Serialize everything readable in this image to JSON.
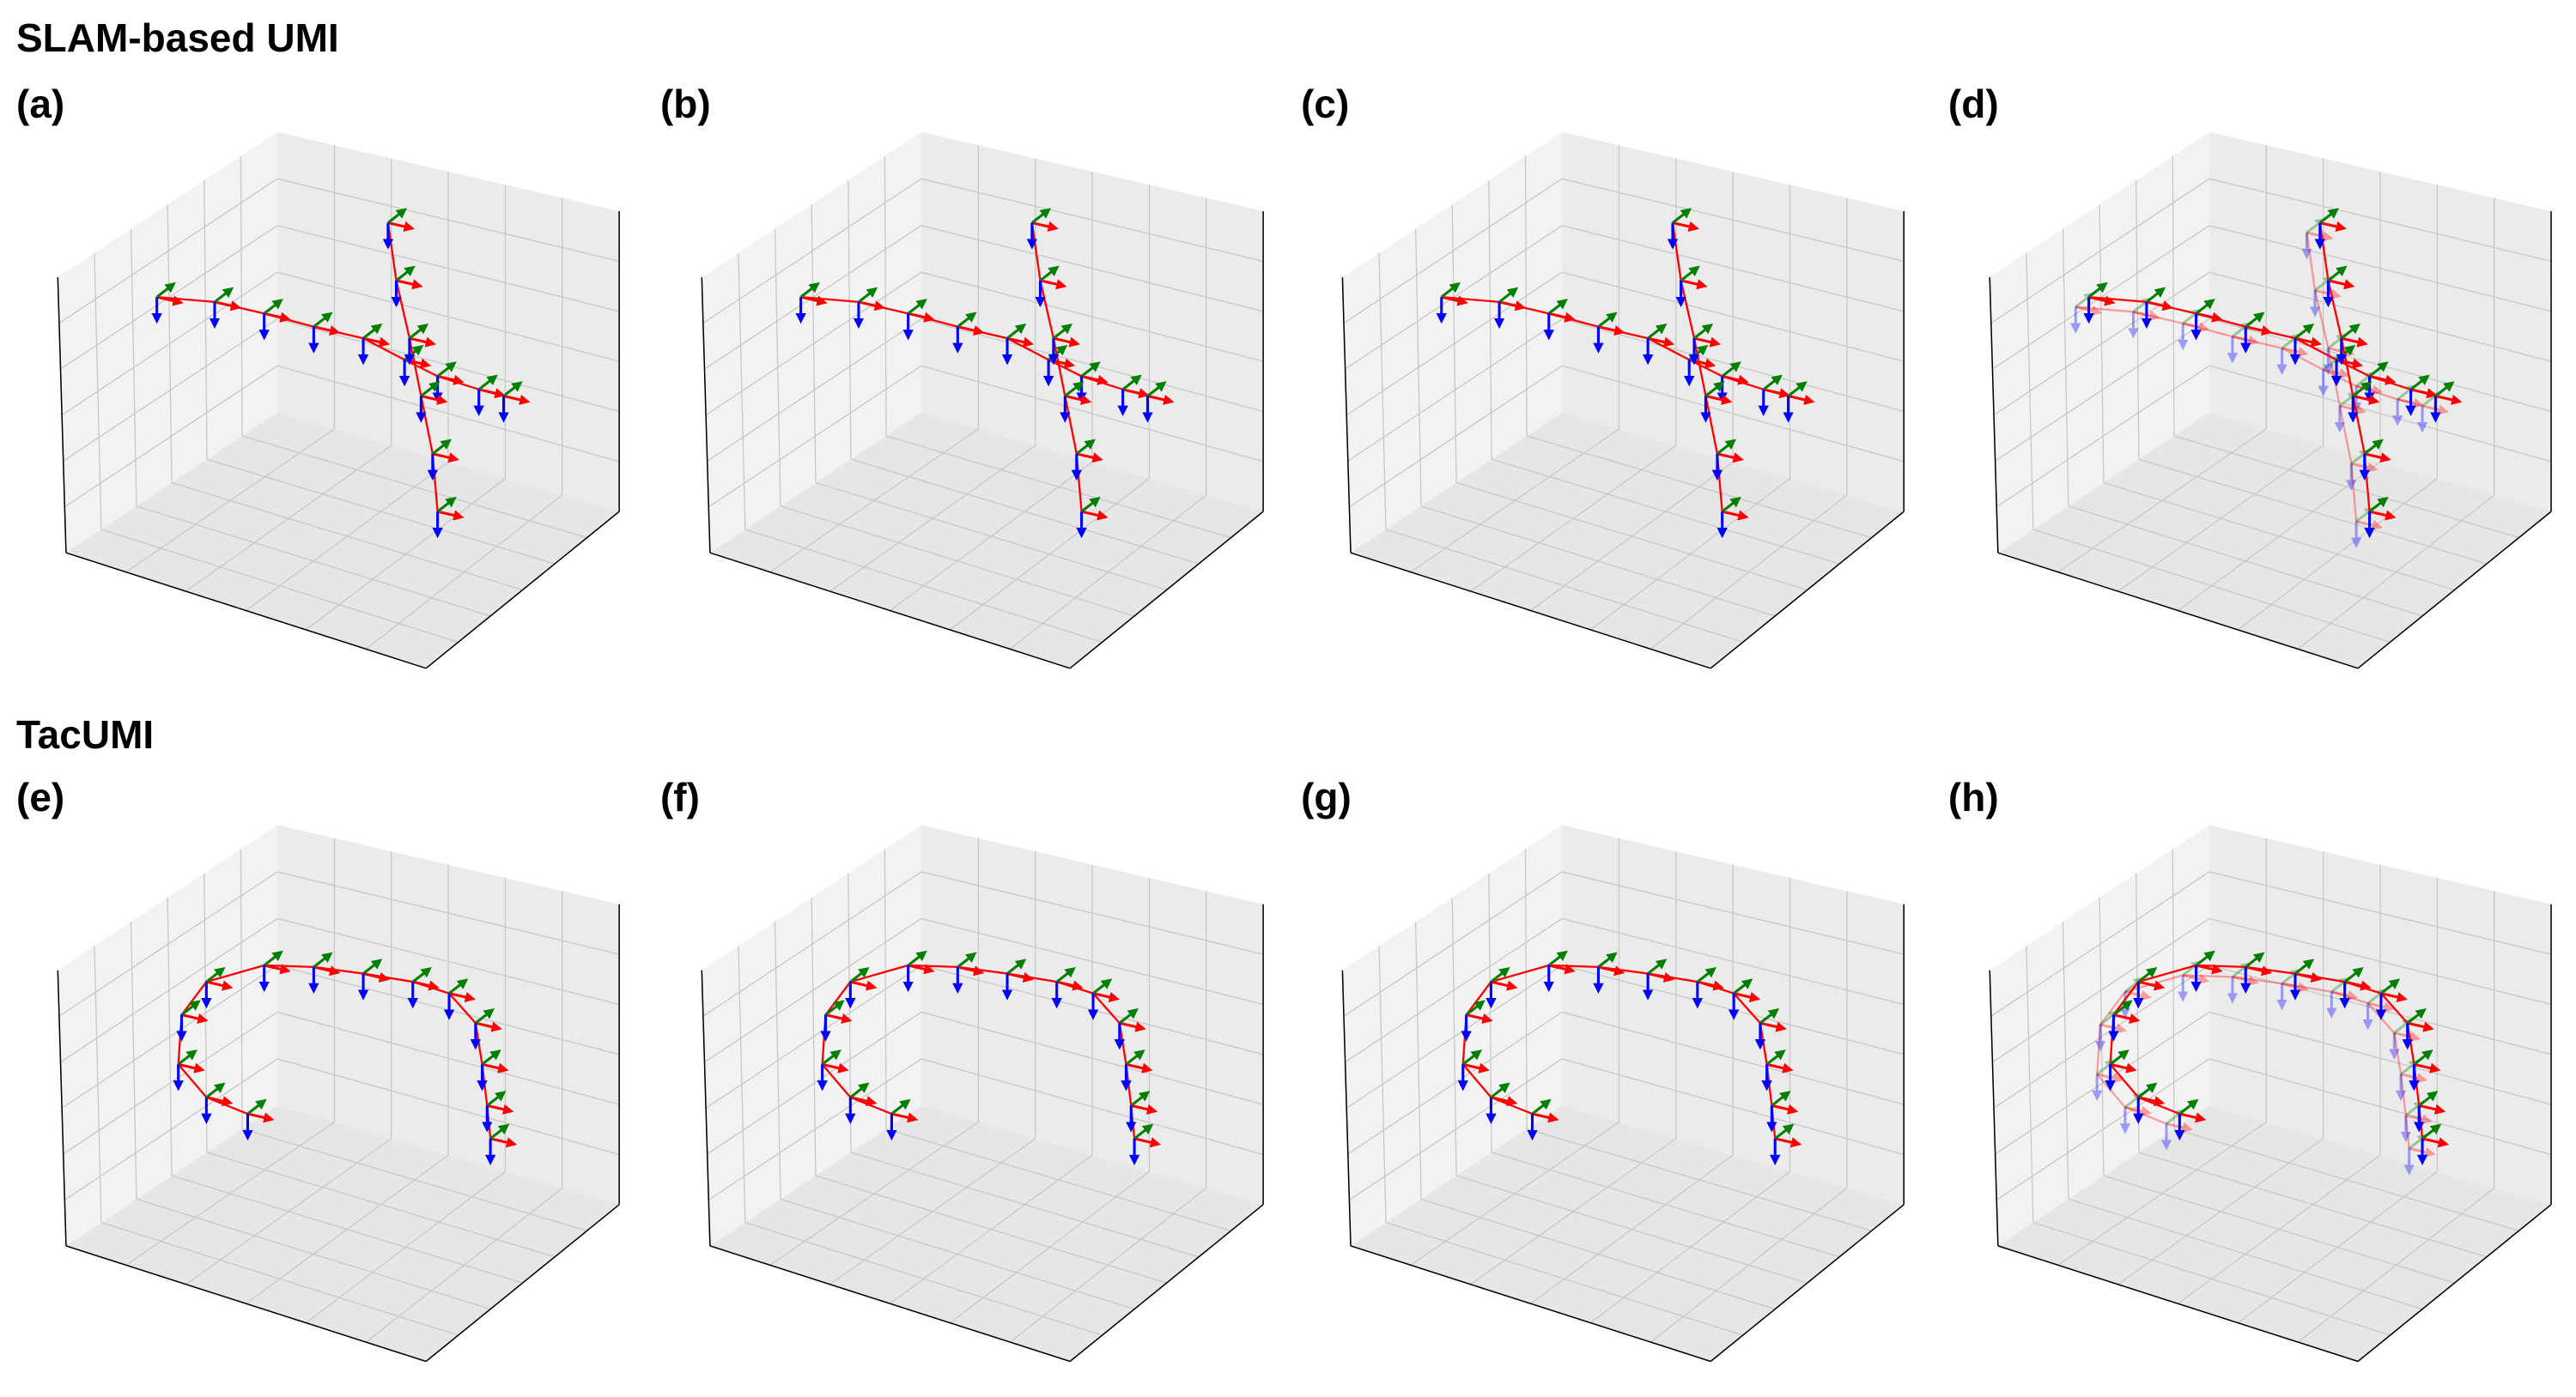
{
  "rows": [
    {
      "title": "SLAM-based UMI",
      "panels": [
        "(a)",
        "(b)",
        "(c)",
        "(d)"
      ]
    },
    {
      "title": "TacUMI",
      "panels": [
        "(e)",
        "(f)",
        "(g)",
        "(h)"
      ]
    }
  ]
}
